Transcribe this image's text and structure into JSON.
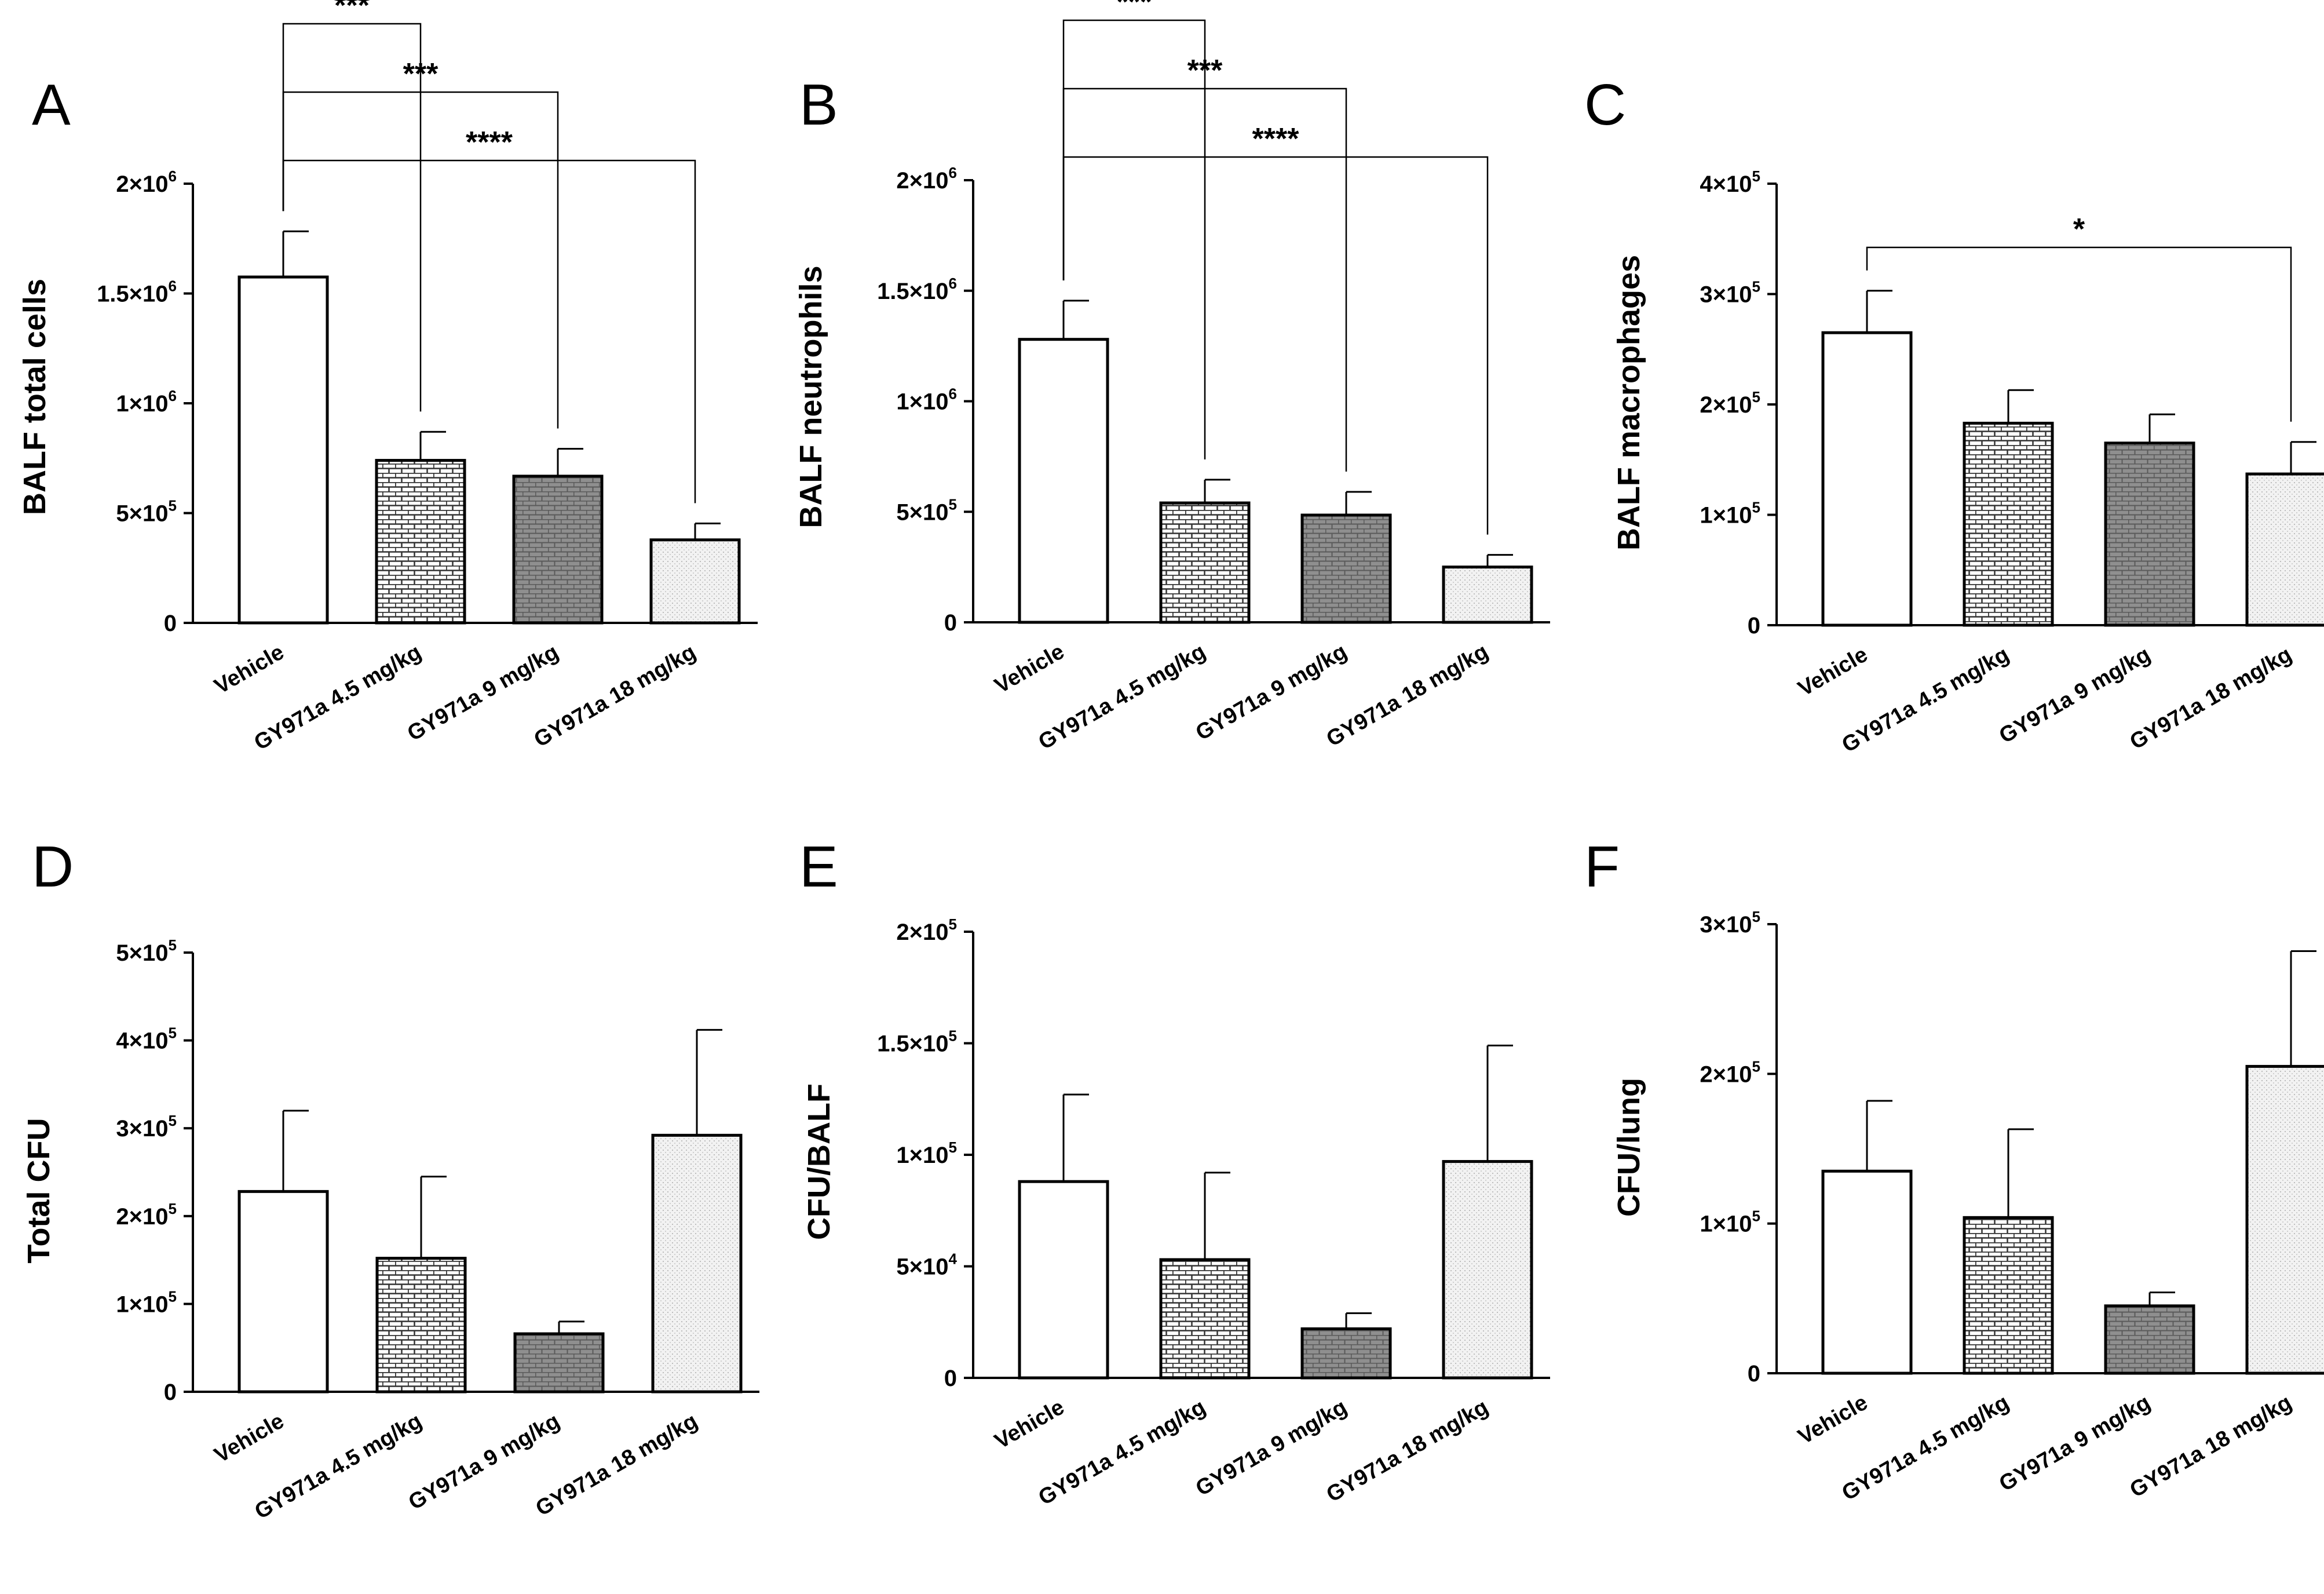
{
  "chart_data": [
    {
      "type": "bar",
      "panel": "A",
      "ylabel": "BALF total cells",
      "categories": [
        "Vehicle",
        "GY971a 4.5 mg/kg",
        "GY971a 9 mg/kg",
        "GY971a 18 mg/kg"
      ],
      "values": [
        1575000,
        740000,
        668000,
        378000
      ],
      "errors": [
        208000,
        130000,
        125000,
        75000
      ],
      "ylim": [
        0,
        2000000
      ],
      "yticks": [
        {
          "value": 0,
          "base": "0",
          "exp": ""
        },
        {
          "value": 500000,
          "base": "5×10",
          "exp": "5"
        },
        {
          "value": 1000000,
          "base": "1×10",
          "exp": "6"
        },
        {
          "value": 1500000,
          "base": "1.5×10",
          "exp": "6"
        },
        {
          "value": 2000000,
          "base": "2×10",
          "exp": "6"
        }
      ],
      "significance": [
        {
          "from": 0,
          "to": 1,
          "label": "***"
        },
        {
          "from": 0,
          "to": 2,
          "label": "***"
        },
        {
          "from": 0,
          "to": 3,
          "label": "****"
        }
      ]
    },
    {
      "type": "bar",
      "panel": "B",
      "ylabel": "BALF neutrophils",
      "categories": [
        "Vehicle",
        "GY971a 4.5 mg/kg",
        "GY971a 9 mg/kg",
        "GY971a 18 mg/kg"
      ],
      "values": [
        1280000,
        540000,
        485000,
        250000
      ],
      "errors": [
        175000,
        105000,
        105000,
        55000
      ],
      "ylim": [
        0,
        2000000
      ],
      "yticks": [
        {
          "value": 0,
          "base": "0",
          "exp": ""
        },
        {
          "value": 500000,
          "base": "5×10",
          "exp": "5"
        },
        {
          "value": 1000000,
          "base": "1×10",
          "exp": "6"
        },
        {
          "value": 1500000,
          "base": "1.5×10",
          "exp": "6"
        },
        {
          "value": 2000000,
          "base": "2×10",
          "exp": "6"
        }
      ],
      "significance": [
        {
          "from": 0,
          "to": 1,
          "label": "***"
        },
        {
          "from": 0,
          "to": 2,
          "label": "***"
        },
        {
          "from": 0,
          "to": 3,
          "label": "****"
        }
      ]
    },
    {
      "type": "bar",
      "panel": "C",
      "ylabel": "BALF macrophages",
      "categories": [
        "Vehicle",
        "GY971a 4.5 mg/kg",
        "GY971a 9 mg/kg",
        "GY971a 18 mg/kg"
      ],
      "values": [
        265000,
        183000,
        165000,
        137000
      ],
      "errors": [
        38000,
        30000,
        26000,
        29000
      ],
      "ylim": [
        0,
        400000
      ],
      "yticks": [
        {
          "value": 0,
          "base": "0",
          "exp": ""
        },
        {
          "value": 100000,
          "base": "1×10",
          "exp": "5"
        },
        {
          "value": 200000,
          "base": "2×10",
          "exp": "5"
        },
        {
          "value": 300000,
          "base": "3×10",
          "exp": "5"
        },
        {
          "value": 400000,
          "base": "4×10",
          "exp": "5"
        }
      ],
      "significance": [
        {
          "from": 0,
          "to": 3,
          "label": "*"
        }
      ]
    },
    {
      "type": "bar",
      "panel": "D",
      "ylabel": "Total CFU",
      "categories": [
        "Vehicle",
        "GY971a 4.5 mg/kg",
        "GY971a 9 mg/kg",
        "GY971a 18 mg/kg"
      ],
      "values": [
        228000,
        152000,
        66000,
        292000
      ],
      "errors": [
        92000,
        93000,
        14000,
        120000
      ],
      "ylim": [
        0,
        500000
      ],
      "yticks": [
        {
          "value": 0,
          "base": "0",
          "exp": ""
        },
        {
          "value": 100000,
          "base": "1×10",
          "exp": "5"
        },
        {
          "value": 200000,
          "base": "2×10",
          "exp": "5"
        },
        {
          "value": 300000,
          "base": "3×10",
          "exp": "5"
        },
        {
          "value": 400000,
          "base": "4×10",
          "exp": "5"
        },
        {
          "value": 500000,
          "base": "5×10",
          "exp": "5"
        }
      ],
      "significance": []
    },
    {
      "type": "bar",
      "panel": "E",
      "ylabel": "CFU/BALF",
      "categories": [
        "Vehicle",
        "GY971a 4.5 mg/kg",
        "GY971a 9 mg/kg",
        "GY971a 18 mg/kg"
      ],
      "values": [
        88000,
        53000,
        22000,
        97000
      ],
      "errors": [
        39000,
        39000,
        7000,
        52000
      ],
      "ylim": [
        0,
        200000
      ],
      "yticks": [
        {
          "value": 0,
          "base": "0",
          "exp": ""
        },
        {
          "value": 50000,
          "base": "5×10",
          "exp": "4"
        },
        {
          "value": 100000,
          "base": "1×10",
          "exp": "5"
        },
        {
          "value": 150000,
          "base": "1.5×10",
          "exp": "5"
        },
        {
          "value": 200000,
          "base": "2×10",
          "exp": "5"
        }
      ],
      "significance": []
    },
    {
      "type": "bar",
      "panel": "F",
      "ylabel": "CFU/lung",
      "categories": [
        "Vehicle",
        "GY971a 4.5 mg/kg",
        "GY971a 9 mg/kg",
        "GY971a 18 mg/kg"
      ],
      "values": [
        135000,
        104000,
        45000,
        205000
      ],
      "errors": [
        47000,
        59000,
        9000,
        77000
      ],
      "ylim": [
        0,
        300000
      ],
      "yticks": [
        {
          "value": 0,
          "base": "0",
          "exp": ""
        },
        {
          "value": 100000,
          "base": "1×10",
          "exp": "5"
        },
        {
          "value": 200000,
          "base": "2×10",
          "exp": "5"
        },
        {
          "value": 300000,
          "base": "3×10",
          "exp": "5"
        }
      ],
      "significance": []
    }
  ]
}
